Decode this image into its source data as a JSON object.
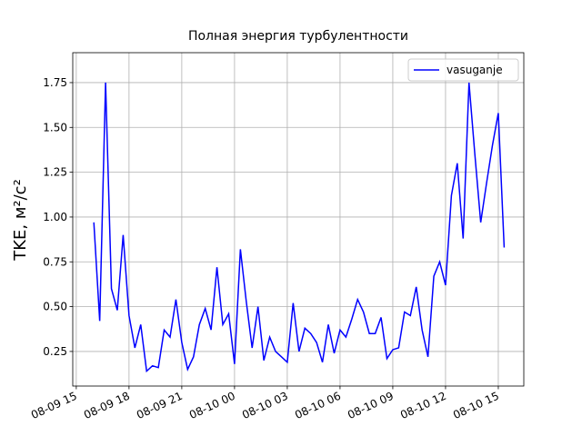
{
  "chart_data": {
    "type": "line",
    "title": "Полная энергия турбулентности",
    "ylabel": "TKE, м²/с²",
    "x": [
      "08-09 16:00",
      "08-09 16:20",
      "08-09 16:40",
      "08-09 17:00",
      "08-09 17:20",
      "08-09 17:40",
      "08-09 18:00",
      "08-09 18:20",
      "08-09 18:40",
      "08-09 19:00",
      "08-09 19:20",
      "08-09 19:40",
      "08-09 20:00",
      "08-09 20:20",
      "08-09 20:40",
      "08-09 21:00",
      "08-09 21:20",
      "08-09 21:40",
      "08-09 22:00",
      "08-09 22:20",
      "08-09 22:40",
      "08-09 23:00",
      "08-09 23:20",
      "08-09 23:40",
      "08-10 00:00",
      "08-10 00:20",
      "08-10 00:40",
      "08-10 01:00",
      "08-10 01:20",
      "08-10 01:40",
      "08-10 02:00",
      "08-10 02:20",
      "08-10 02:40",
      "08-10 03:00",
      "08-10 03:20",
      "08-10 03:40",
      "08-10 04:00",
      "08-10 04:20",
      "08-10 04:40",
      "08-10 05:00",
      "08-10 05:20",
      "08-10 05:40",
      "08-10 06:00",
      "08-10 06:20",
      "08-10 06:40",
      "08-10 07:00",
      "08-10 07:20",
      "08-10 07:40",
      "08-10 08:00",
      "08-10 08:20",
      "08-10 08:40",
      "08-10 09:00",
      "08-10 09:20",
      "08-10 09:40",
      "08-10 10:00",
      "08-10 10:20",
      "08-10 10:40",
      "08-10 11:00",
      "08-10 11:20",
      "08-10 11:40",
      "08-10 12:00",
      "08-10 12:20",
      "08-10 12:40",
      "08-10 13:00",
      "08-10 13:20",
      "08-10 13:40",
      "08-10 14:00",
      "08-10 14:20",
      "08-10 14:40",
      "08-10 15:00",
      "08-10 15:20"
    ],
    "series": [
      {
        "name": "vasuganje",
        "color": "#0000ff",
        "values": [
          0.97,
          0.42,
          1.75,
          0.6,
          0.48,
          0.9,
          0.45,
          0.27,
          0.4,
          0.14,
          0.17,
          0.16,
          0.37,
          0.33,
          0.54,
          0.3,
          0.15,
          0.22,
          0.4,
          0.49,
          0.37,
          0.72,
          0.4,
          0.46,
          0.18,
          0.82,
          0.53,
          0.27,
          0.5,
          0.2,
          0.33,
          0.25,
          0.22,
          0.19,
          0.52,
          0.25,
          0.38,
          0.35,
          0.3,
          0.19,
          0.4,
          0.24,
          0.37,
          0.33,
          0.43,
          0.54,
          0.47,
          0.35,
          0.35,
          0.44,
          0.21,
          0.26,
          0.27,
          0.47,
          0.45,
          0.61,
          0.37,
          0.22,
          0.67,
          0.75,
          0.62,
          1.12,
          1.3,
          0.88,
          1.75,
          1.35,
          0.97,
          1.19,
          1.4,
          1.58,
          0.83
        ]
      }
    ],
    "xlim": [
      "08-09 14:48",
      "08-10 16:27"
    ],
    "xticks": [
      "08-09 15",
      "08-09 18",
      "08-09 21",
      "08-10 00",
      "08-10 03",
      "08-10 06",
      "08-10 09",
      "08-10 12",
      "08-10 15"
    ],
    "ylim": [
      0.057,
      1.917
    ],
    "yticks": [
      0.25,
      {
        "value": 0.5,
        "label": "0.50"
      },
      0.75,
      {
        "value": 1.0,
        "label": "1.00"
      },
      1.25,
      {
        "value": 1.5,
        "label": "1.50"
      },
      1.75
    ],
    "grid": true,
    "legend": "upper right"
  }
}
